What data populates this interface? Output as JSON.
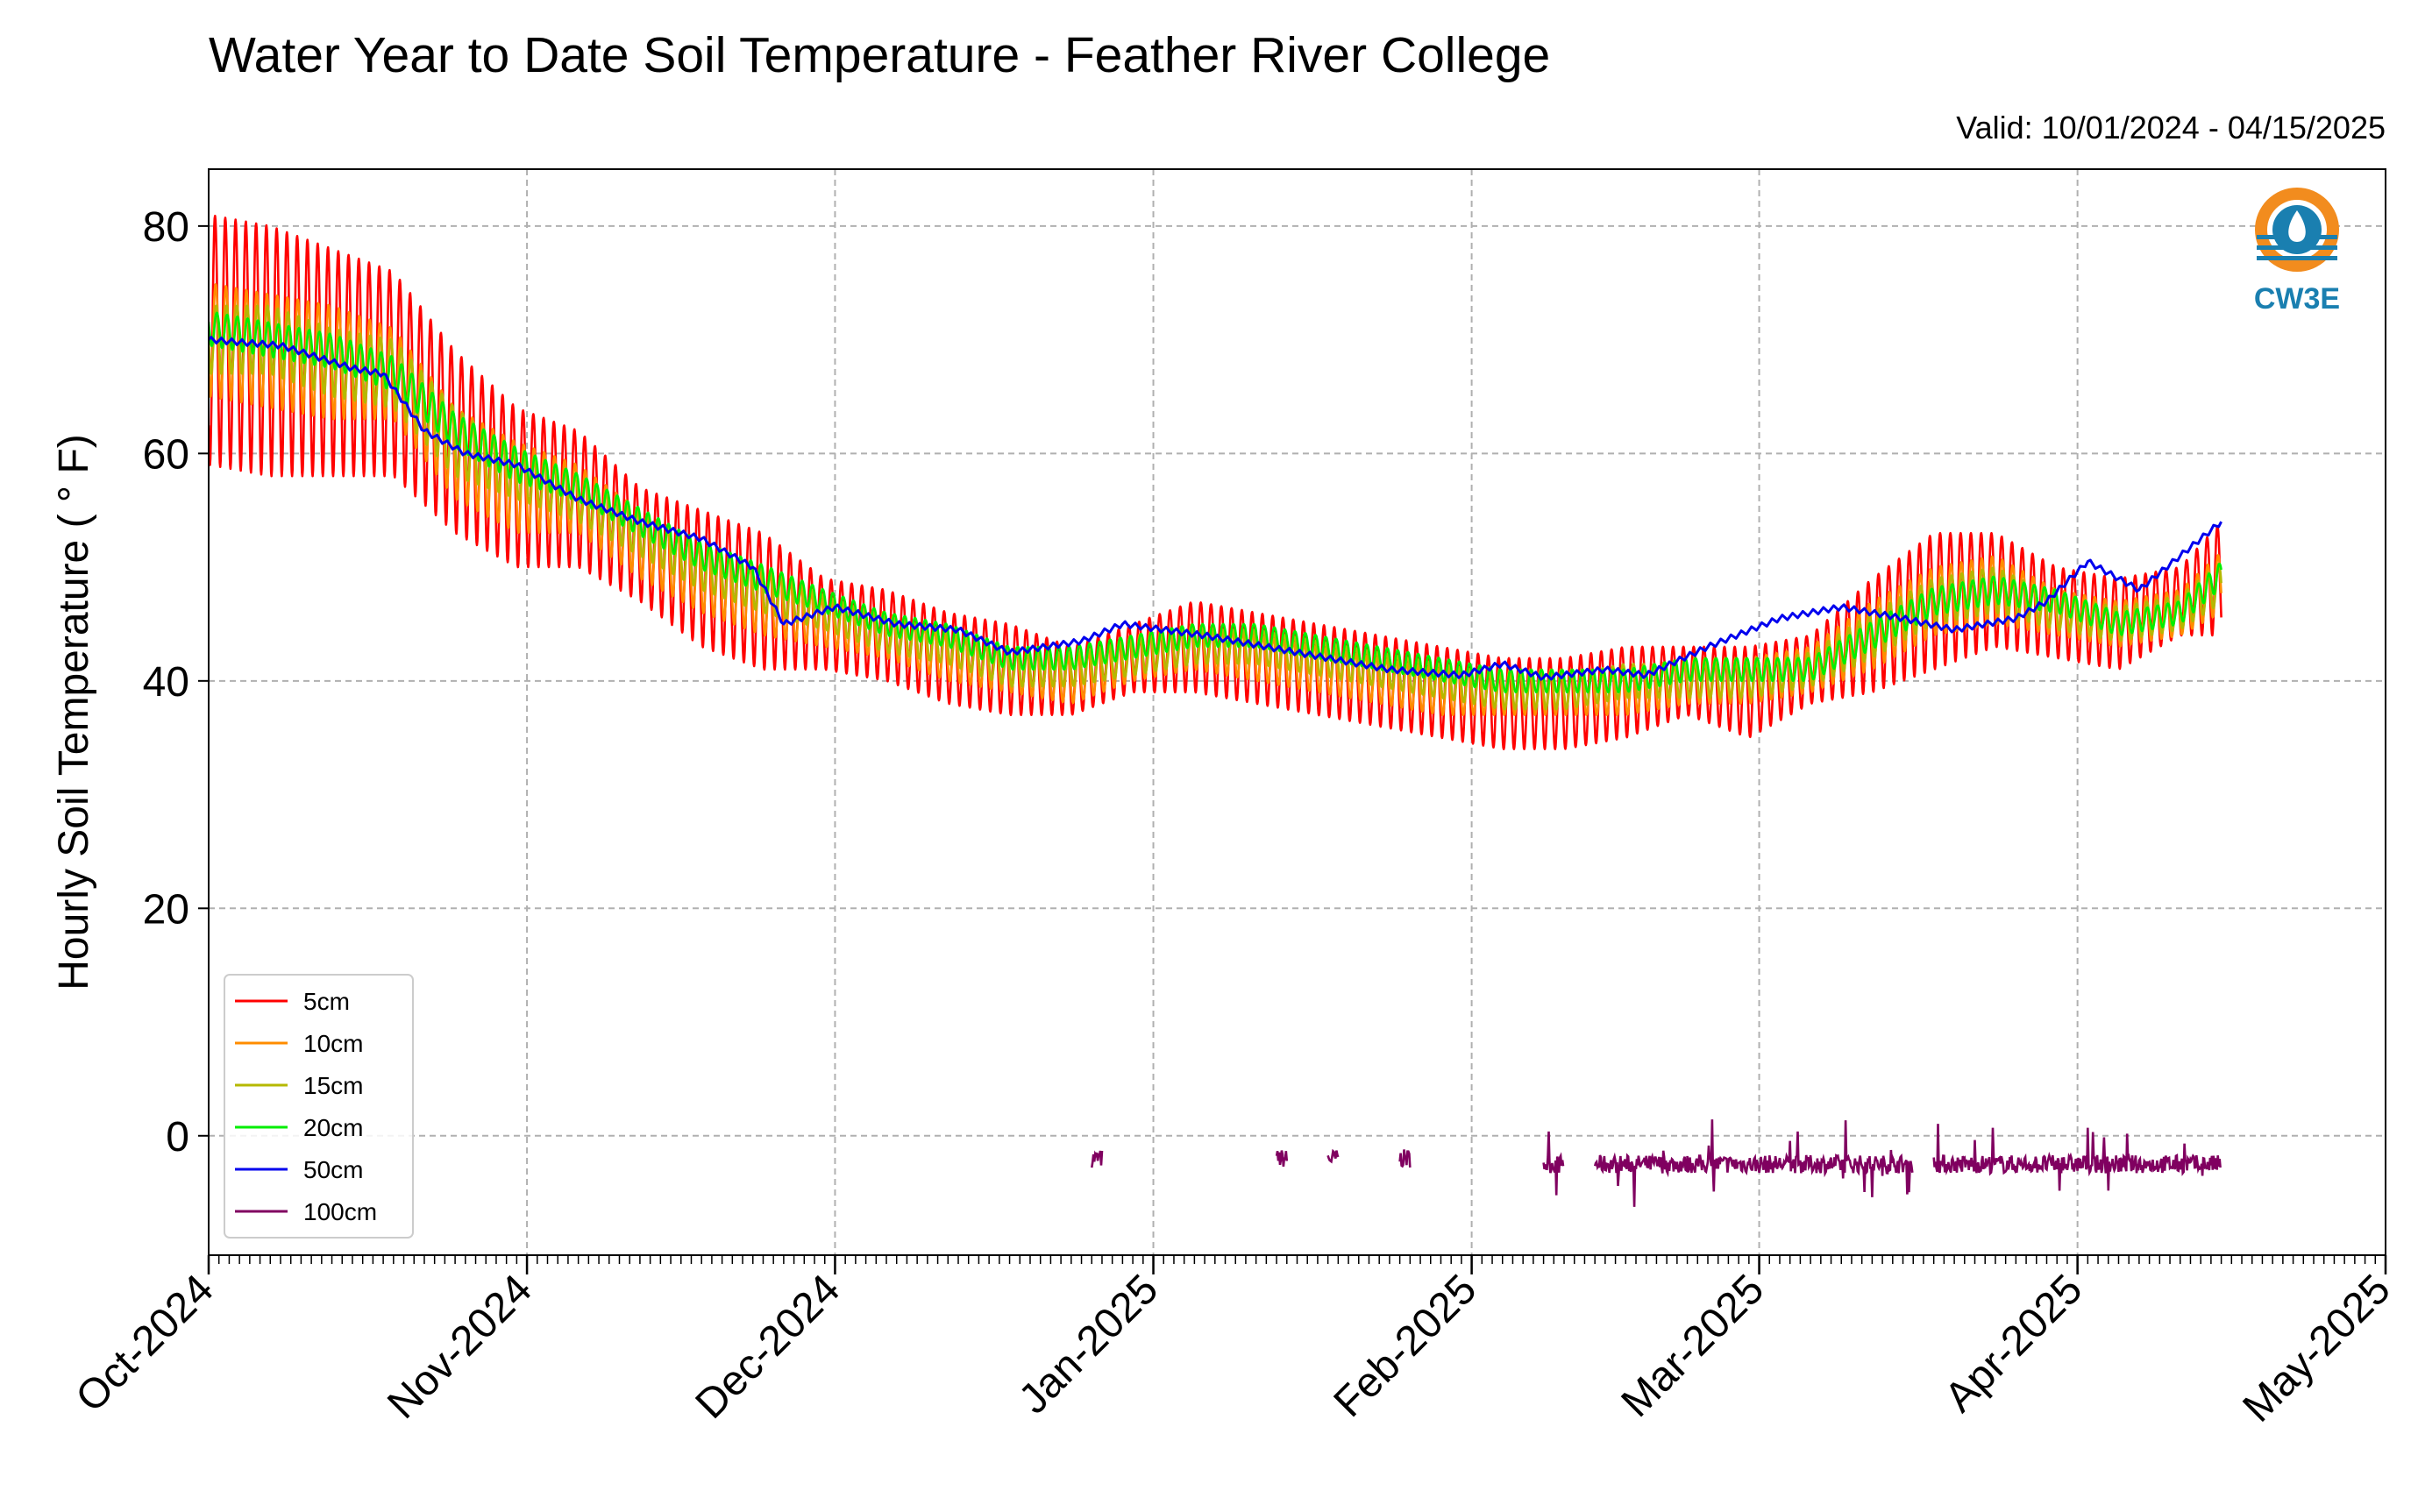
{
  "header": {
    "title": "Water Year to Date Soil Temperature - Feather River College",
    "valid": "Valid: 10/01/2024 - 04/15/2025"
  },
  "logo": {
    "name": "cw3e-logo",
    "text": "CW3E",
    "colors": {
      "orange": "#f28c1e",
      "blue": "#1a7fb0"
    }
  },
  "chart_data": {
    "type": "line",
    "title": "Water Year to Date Soil Temperature - Feather River College",
    "xlabel": "",
    "ylabel": "Hourly Soil Temperature ( ° F)",
    "xlim": [
      "2024-10-01",
      "2025-05-01"
    ],
    "ylim": [
      -10.5,
      85
    ],
    "yticks": [
      0,
      20,
      40,
      60,
      80
    ],
    "xticks": [
      {
        "date": "2024-10-01",
        "label": "Oct-2024"
      },
      {
        "date": "2024-11-01",
        "label": "Nov-2024"
      },
      {
        "date": "2024-12-01",
        "label": "Dec-2024"
      },
      {
        "date": "2025-01-01",
        "label": "Jan-2025"
      },
      {
        "date": "2025-02-01",
        "label": "Feb-2025"
      },
      {
        "date": "2025-03-01",
        "label": "Mar-2025"
      },
      {
        "date": "2025-04-01",
        "label": "Apr-2025"
      },
      {
        "date": "2025-05-01",
        "label": "May-2025"
      }
    ],
    "grid": true,
    "legend_position": "lower-left",
    "series": [
      {
        "name": "5cm",
        "color": "#ff0000",
        "mean": [
          70,
          69,
          68,
          67,
          61,
          57,
          56,
          52,
          49,
          47,
          45,
          44,
          42,
          41,
          40,
          42,
          43,
          42,
          41,
          40,
          39,
          38,
          38,
          39,
          40,
          39,
          41,
          44,
          47,
          48,
          46,
          45,
          47,
          50,
          50,
          48,
          51,
          56
        ],
        "amplitude": [
          11,
          11,
          10,
          9,
          8,
          7,
          6,
          5,
          6,
          6,
          4,
          4,
          4,
          4,
          3,
          3,
          4,
          4,
          4,
          4,
          4,
          4,
          4,
          4,
          3,
          4,
          3,
          5,
          6,
          5,
          4,
          4,
          3,
          6,
          5,
          4,
          6,
          9
        ]
      },
      {
        "name": "10cm",
        "color": "#ff8c00",
        "mean": [
          70,
          69,
          68,
          67,
          60,
          57,
          56,
          52,
          49,
          47,
          45,
          44,
          42,
          41,
          40,
          42,
          43,
          42,
          41,
          40,
          39,
          39,
          39,
          39,
          40,
          40,
          41,
          44,
          47,
          48,
          46,
          45,
          46,
          50,
          50,
          48,
          51,
          56
        ],
        "amplitude": [
          5,
          5,
          5,
          4,
          4,
          4,
          3,
          3,
          3,
          3,
          2,
          2,
          2,
          2,
          2,
          2,
          2,
          2,
          2,
          2,
          2,
          2,
          2,
          2,
          2,
          2,
          2,
          3,
          3,
          3,
          2,
          2,
          2,
          3,
          3,
          2,
          3,
          4
        ]
      },
      {
        "name": "15cm",
        "color": "#b5b800",
        "mean": [
          70,
          70,
          68,
          67,
          61,
          58,
          56,
          53,
          50,
          48,
          46,
          44,
          43,
          41,
          41,
          42,
          43,
          43,
          42,
          41,
          40,
          39,
          39,
          40,
          40,
          40,
          41,
          44,
          47,
          48,
          46,
          45,
          46,
          50,
          51,
          48,
          51,
          56
        ],
        "amplitude": [
          3,
          3,
          3,
          3,
          3,
          2,
          2,
          2,
          2,
          2,
          1.5,
          1.5,
          1.5,
          1.5,
          1.5,
          1.5,
          1.5,
          1.5,
          1.5,
          1.5,
          1.5,
          1.5,
          1.5,
          1.5,
          1.5,
          1.5,
          1.5,
          2,
          2,
          2,
          1.5,
          1.5,
          1.5,
          2,
          2,
          1.5,
          2,
          3
        ]
      },
      {
        "name": "20cm",
        "color": "#00ee00",
        "mean": [
          71,
          70,
          69,
          67,
          62,
          59,
          57,
          54,
          51,
          49,
          47,
          45,
          44,
          42,
          42,
          43,
          44,
          44,
          43,
          42,
          41,
          40,
          40,
          40,
          41,
          41,
          41,
          44,
          47,
          48,
          47,
          45,
          46,
          51,
          52,
          49,
          51,
          56
        ],
        "amplitude": [
          1.5,
          1.5,
          1.5,
          1.5,
          1.5,
          1.5,
          1.2,
          1.2,
          1.2,
          1.2,
          1,
          1,
          1,
          1,
          1,
          1,
          1,
          1,
          1,
          1,
          1,
          1,
          1,
          1,
          1,
          1,
          1,
          1.2,
          1.2,
          1.2,
          1,
          1,
          1,
          1.2,
          1.2,
          1,
          1.2,
          1.5
        ]
      },
      {
        "name": "50cm",
        "color": "#0000ee",
        "x": [
          "2024-10-01",
          "2024-10-08",
          "2024-10-15",
          "2024-10-18",
          "2024-10-22",
          "2024-10-26",
          "2024-10-31",
          "2024-11-06",
          "2024-11-12",
          "2024-11-18",
          "2024-11-23",
          "2024-11-26",
          "2024-12-01",
          "2024-12-07",
          "2024-12-13",
          "2024-12-18",
          "2024-12-25",
          "2024-12-29",
          "2025-01-06",
          "2025-01-15",
          "2025-01-24",
          "2025-01-31",
          "2025-02-04",
          "2025-02-08",
          "2025-02-14",
          "2025-02-18",
          "2025-02-24",
          "2025-03-03",
          "2025-03-09",
          "2025-03-15",
          "2025-03-20",
          "2025-03-26",
          "2025-03-29",
          "2025-04-02",
          "2025-04-07",
          "2025-04-15"
        ],
        "values": [
          70,
          69.5,
          67.5,
          67,
          62,
          60,
          59,
          56,
          54,
          52.5,
          50,
          45,
          46.5,
          45,
          44.5,
          42.5,
          43.5,
          45,
          44,
          42.5,
          41,
          40.5,
          41.5,
          40.3,
          41,
          40.5,
          43,
          45.5,
          46.5,
          45.5,
          44.5,
          45.5,
          47,
          50.5,
          48,
          54
        ]
      },
      {
        "name": "100cm",
        "color": "#800060",
        "segments": [
          {
            "start": "2024-12-26",
            "end": "2024-12-27",
            "value": -2
          },
          {
            "start": "2025-01-13",
            "end": "2025-01-14",
            "value": -2
          },
          {
            "start": "2025-01-18",
            "end": "2025-01-19",
            "value": -2
          },
          {
            "start": "2025-01-25",
            "end": "2025-01-26",
            "value": -2
          },
          {
            "start": "2025-02-08",
            "end": "2025-02-10",
            "value": -2.5
          },
          {
            "start": "2025-02-13",
            "end": "2025-03-16",
            "value": -2.5
          },
          {
            "start": "2025-03-18",
            "end": "2025-04-15",
            "value": -2.5
          }
        ]
      }
    ]
  }
}
